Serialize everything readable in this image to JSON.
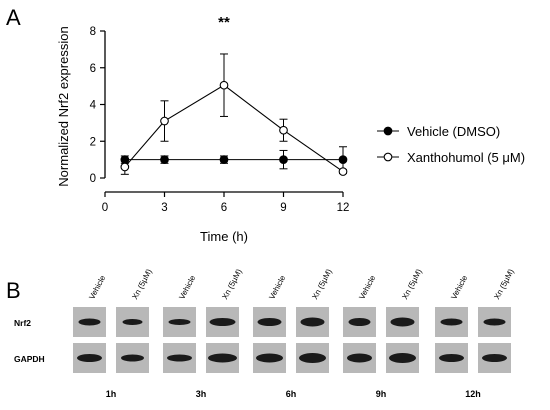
{
  "panel_a_label": "A",
  "panel_b_label": "B",
  "chart_data": {
    "type": "line",
    "title": "",
    "xlabel": "Time (h)",
    "ylabel": "Normalized Nrf2 expression",
    "xlim": [
      0,
      12
    ],
    "ylim": [
      0,
      8
    ],
    "xticks": [
      0,
      3,
      6,
      9,
      12
    ],
    "yticks": [
      0,
      2,
      4,
      6,
      8
    ],
    "grid": false,
    "legend_position": "right",
    "series": [
      {
        "name": "Vehicle (DMSO)",
        "marker": "filled-circle",
        "color": "#000000",
        "x": [
          1,
          3,
          6,
          9,
          12
        ],
        "y": [
          1.0,
          1.0,
          1.0,
          1.0,
          1.0
        ],
        "error": [
          0.2,
          0.2,
          0.2,
          0.5,
          0.7
        ]
      },
      {
        "name": "Xanthohumol (5 μM)",
        "marker": "open-circle",
        "color": "#000000",
        "x": [
          1,
          3,
          6,
          9,
          12
        ],
        "y": [
          0.6,
          3.1,
          5.05,
          2.6,
          0.35
        ],
        "error": [
          0.4,
          1.1,
          1.7,
          0.6,
          0.1
        ]
      }
    ],
    "annotations": [
      {
        "text": "**",
        "x": 6
      }
    ]
  },
  "blot": {
    "lane_labels": [
      "Vehicle",
      "Xn (5μM)"
    ],
    "rows": [
      "Nrf2",
      "GAPDH"
    ],
    "time_points": [
      "1h",
      "3h",
      "6h",
      "9h",
      "12h"
    ],
    "band_color": "#1a1a1a",
    "background_color": "#b8b8b8"
  }
}
